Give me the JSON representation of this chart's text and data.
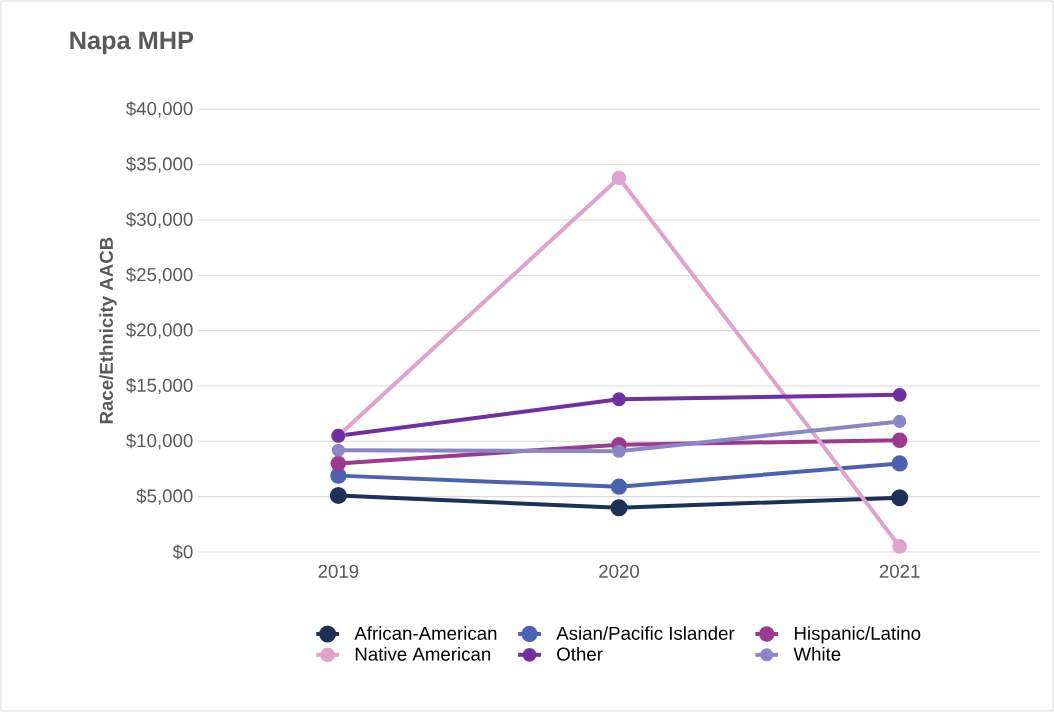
{
  "chart_data": {
    "type": "line",
    "title": "Napa MHP",
    "ylabel": "Race/Ethnicity AACB",
    "categories": [
      "2019",
      "2020",
      "2021"
    ],
    "series": [
      {
        "name": "African-American",
        "color": "#1f3057",
        "values": [
          5100,
          4000,
          4900
        ]
      },
      {
        "name": "Asian/Pacific Islander",
        "color": "#4a62b0",
        "values": [
          6900,
          5900,
          8000
        ]
      },
      {
        "name": "Hispanic/Latino",
        "color": "#9b3a8e",
        "values": [
          8000,
          9700,
          10100
        ]
      },
      {
        "name": "Native American",
        "color": "#e0a3cc",
        "values": [
          10500,
          33800,
          500
        ]
      },
      {
        "name": "Other",
        "color": "#7030a0",
        "values": [
          10500,
          13800,
          14200
        ]
      },
      {
        "name": "White",
        "color": "#8b87c4",
        "values": [
          9200,
          9100,
          11800
        ]
      }
    ],
    "ylim": [
      0,
      40000
    ],
    "yticks": [
      {
        "value": 0,
        "label": "$0"
      },
      {
        "value": 5000,
        "label": "$5,000"
      },
      {
        "value": 10000,
        "label": "$10,000"
      },
      {
        "value": 15000,
        "label": "$15,000"
      },
      {
        "value": 20000,
        "label": "$20,000"
      },
      {
        "value": 25000,
        "label": "$25,000"
      },
      {
        "value": 30000,
        "label": "$30,000"
      },
      {
        "value": 35000,
        "label": "$35,000"
      },
      {
        "value": 40000,
        "label": "$40,000"
      }
    ],
    "grid": "y",
    "legend": "bottom",
    "marker": "circle",
    "line_style": "solid"
  }
}
